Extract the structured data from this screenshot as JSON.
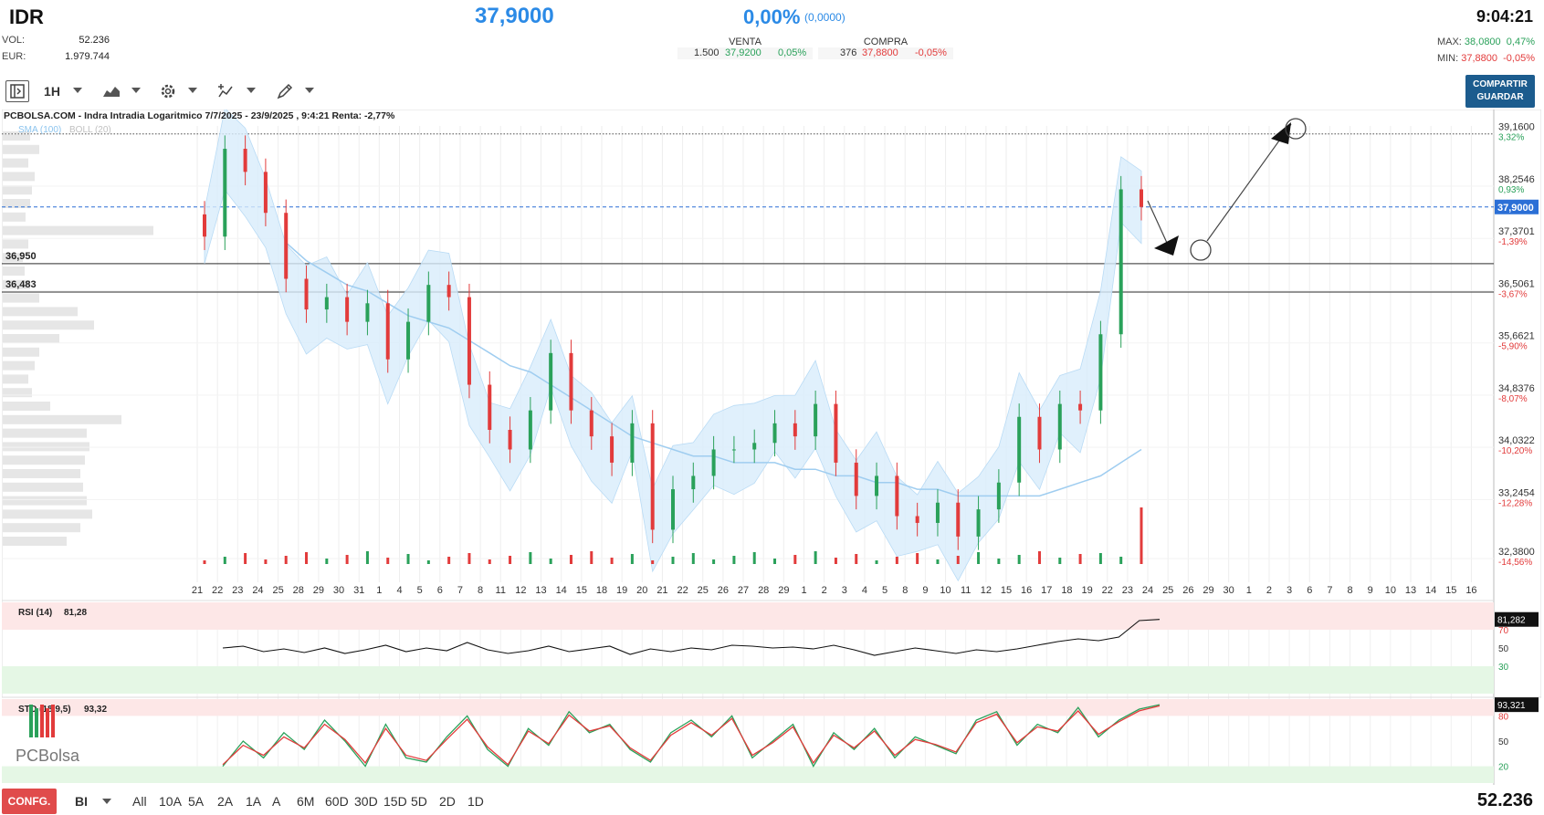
{
  "header": {
    "ticker": "IDR",
    "vol_label": "VOL:",
    "vol_value": "52.236",
    "eur_label": "EUR:",
    "eur_value": "1.979.744",
    "price": "37,9000",
    "change_pct": "0,00%",
    "change_abs": "(0,0000)",
    "time": "9:04:21",
    "sell": {
      "title": "VENTA",
      "qty": "1.500",
      "price": "37,9200",
      "pct": "0,05%"
    },
    "buy": {
      "title": "COMPRA",
      "qty": "376",
      "price": "37,8800",
      "pct": "-0,05%"
    },
    "max": {
      "label": "MAX:",
      "price": "38,0800",
      "pct": "0,47%"
    },
    "min": {
      "label": "MIN:",
      "price": "37,8800",
      "pct": "-0,05%"
    }
  },
  "toolbar": {
    "interval": "1H",
    "share_line1": "COMPARTIR",
    "share_line2": "GUARDAR"
  },
  "footer": {
    "config": "CONFG.",
    "mode": "BI",
    "ranges": [
      "All",
      "10A",
      "5A",
      "2A",
      "1A",
      "A",
      "6M",
      "60D",
      "30D",
      "15D",
      "5D",
      "2D",
      "1D"
    ],
    "volume": "52.236"
  },
  "colors": {
    "accent": "#2b8ae6",
    "up": "#2aa15a",
    "down": "#e23b3b",
    "band": "#d8ecfb",
    "share": "#1c5c8e",
    "config": "#e04b4b"
  },
  "chart_data": [
    {
      "type": "candlestick",
      "title": "PCBOLSA.COM - Indra Intradia Logaritmico 7/7/2025 - 23/9/2025 , 9:4:21 Renta: -2,77%",
      "legend": [
        "SMA (100)",
        "BOLL (20)"
      ],
      "scale": "log",
      "y_ticks": [
        {
          "value": 39.16,
          "label": "39,1600",
          "pct": "3,32%"
        },
        {
          "value": 38.2546,
          "label": "38,2546",
          "pct": "0,93%"
        },
        {
          "value": 37.3701,
          "label": "37,3701",
          "pct": "-1,39%"
        },
        {
          "value": 36.5061,
          "label": "36,5061",
          "pct": "-3,67%"
        },
        {
          "value": 35.6621,
          "label": "35,6621",
          "pct": "-5,90%"
        },
        {
          "value": 34.8376,
          "label": "34,8376",
          "pct": "-8,07%"
        },
        {
          "value": 34.0322,
          "label": "34,0322",
          "pct": "-10,20%"
        },
        {
          "value": 33.2454,
          "label": "33,2454",
          "pct": "-12,28%"
        },
        {
          "value": 32.38,
          "label": "32,3800",
          "pct": "-14,56%"
        }
      ],
      "ylim": [
        32.3,
        39.3
      ],
      "current_price": {
        "value": 37.9,
        "label": "37,9000"
      },
      "support_lines": [
        {
          "value": 36.95,
          "label": "36,950"
        },
        {
          "value": 36.483,
          "label": "36,483"
        }
      ],
      "resistance_line": 39.16,
      "x_tick_labels": [
        "21",
        "22",
        "23",
        "24",
        "25",
        "28",
        "29",
        "30",
        "31",
        "1",
        "4",
        "5",
        "6",
        "7",
        "8",
        "11",
        "12",
        "13",
        "14",
        "15",
        "18",
        "19",
        "20",
        "21",
        "22",
        "25",
        "26",
        "27",
        "28",
        "29",
        "1",
        "2",
        "3",
        "4",
        "5",
        "8",
        "9",
        "10",
        "11",
        "12",
        "15",
        "16",
        "17",
        "18",
        "19",
        "22",
        "23",
        "24",
        "25",
        "26",
        "29",
        "30",
        "1",
        "2",
        "3",
        "6",
        "7",
        "8",
        "9",
        "10",
        "13",
        "14",
        "15",
        "16"
      ],
      "series": [
        {
          "name": "Close",
          "values": [
            37.4,
            38.9,
            38.5,
            37.8,
            36.7,
            36.2,
            36.4,
            36.0,
            36.3,
            35.4,
            36.0,
            36.6,
            36.4,
            35.0,
            34.3,
            34.0,
            34.6,
            35.5,
            34.6,
            34.2,
            33.8,
            34.4,
            32.8,
            33.4,
            33.6,
            34.0,
            34.0,
            34.1,
            34.4,
            34.2,
            34.7,
            33.8,
            33.3,
            33.6,
            33.0,
            32.9,
            33.2,
            32.7,
            33.1,
            33.5,
            34.5,
            34.0,
            34.7,
            34.6,
            35.8,
            38.2,
            37.9
          ]
        },
        {
          "name": "SMA (100)",
          "values": [
            null,
            null,
            null,
            null,
            37.3,
            37.0,
            36.8,
            36.6,
            36.5,
            36.3,
            36.1,
            36.0,
            35.9,
            35.7,
            35.5,
            35.3,
            35.2,
            35.0,
            34.8,
            34.6,
            34.4,
            34.2,
            34.1,
            34.0,
            33.9,
            33.9,
            33.8,
            33.8,
            33.8,
            33.7,
            33.7,
            33.6,
            33.6,
            33.5,
            33.5,
            33.4,
            33.4,
            33.3,
            33.3,
            33.3,
            33.3,
            33.3,
            33.4,
            33.5,
            33.6,
            33.8,
            34.0
          ]
        }
      ],
      "volume_bars": "daily volume shown below price"
    },
    {
      "type": "line",
      "title": "RSI (14)",
      "last_value": "81,28",
      "last_label": "81,282",
      "levels": [
        70,
        50,
        30
      ],
      "ylim": [
        0,
        100
      ],
      "values": [
        50,
        52,
        46,
        49,
        45,
        50,
        44,
        48,
        53,
        46,
        50,
        47,
        56,
        48,
        44,
        47,
        52,
        46,
        49,
        52,
        43,
        49,
        46,
        50,
        48,
        53,
        52,
        50,
        51,
        49,
        53,
        48,
        42,
        46,
        50,
        47,
        44,
        48,
        46,
        49,
        53,
        57,
        60,
        58,
        62,
        80,
        81.28
      ]
    },
    {
      "type": "line",
      "title": "STO (18,9,5)",
      "last_value": "93,32",
      "last_label": "93,321",
      "levels": [
        80,
        50,
        20
      ],
      "ylim": [
        0,
        100
      ],
      "series": [
        {
          "name": "%K",
          "values": [
            20,
            50,
            30,
            60,
            40,
            75,
            50,
            20,
            70,
            30,
            25,
            55,
            80,
            40,
            20,
            65,
            45,
            85,
            60,
            70,
            40,
            25,
            60,
            75,
            55,
            80,
            30,
            50,
            70,
            20,
            60,
            40,
            65,
            30,
            55,
            45,
            35,
            75,
            85,
            45,
            70,
            60,
            90,
            55,
            75,
            88,
            93.32
          ]
        },
        {
          "name": "%D",
          "values": [
            22,
            45,
            33,
            55,
            42,
            70,
            52,
            24,
            65,
            33,
            27,
            52,
            76,
            43,
            22,
            62,
            47,
            81,
            62,
            68,
            42,
            27,
            57,
            72,
            57,
            77,
            33,
            48,
            67,
            24,
            57,
            42,
            62,
            33,
            52,
            46,
            37,
            72,
            82,
            48,
            67,
            62,
            86,
            58,
            73,
            86,
            92
          ]
        }
      ]
    }
  ]
}
